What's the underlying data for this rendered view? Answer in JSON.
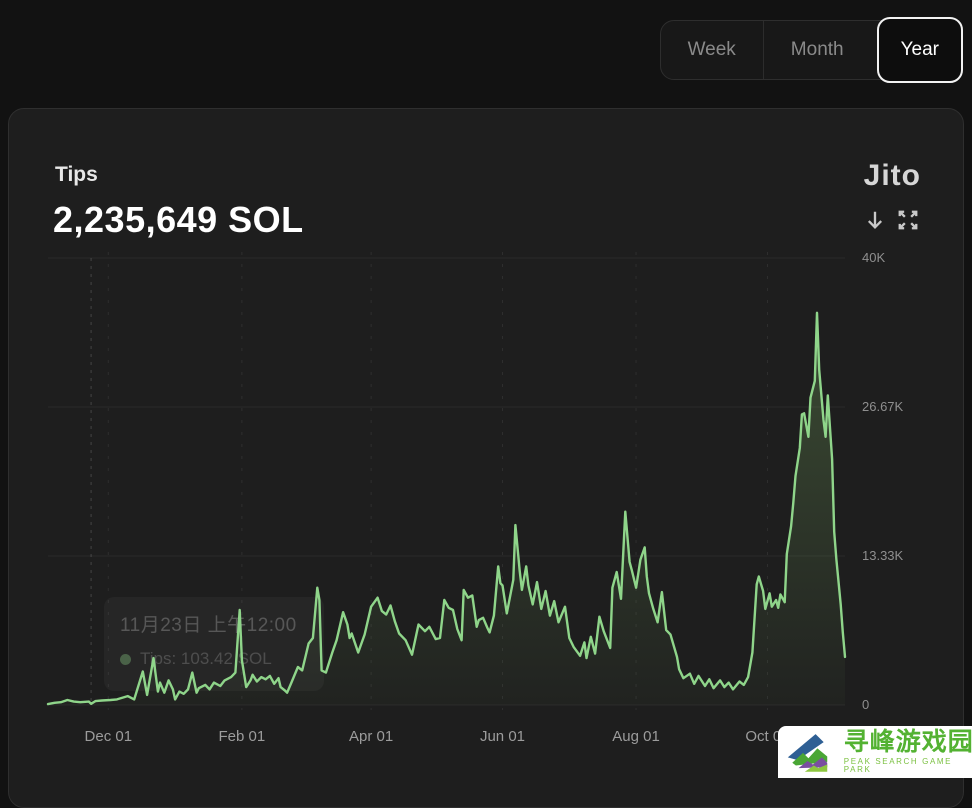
{
  "time_range": {
    "options": [
      {
        "label": "Week",
        "selected": false
      },
      {
        "label": "Month",
        "selected": false
      },
      {
        "label": "Year",
        "selected": true
      }
    ]
  },
  "card": {
    "title": "Tips",
    "total_value": "2,235,649 SOL",
    "logo_text": "Jito",
    "icons": {
      "download": "arrow-down-icon",
      "fullscreen": "expand-arrows-icon"
    }
  },
  "tooltip": {
    "date_line": "11月23日 上午12:00",
    "series_text": "Tips: 103.42 SOL"
  },
  "watermark": {
    "cn": "寻峰游戏园",
    "en": "PEAK SEARCH GAME PARK"
  },
  "chart_data": {
    "type": "line",
    "title": "Tips",
    "unit": "SOL",
    "legend": [
      "Tips"
    ],
    "grid": true,
    "x_axis": {
      "range_days": [
        0,
        370
      ],
      "ticks": [
        {
          "label": "Dec 01",
          "day": 28
        },
        {
          "label": "Feb 01",
          "day": 90
        },
        {
          "label": "Apr 01",
          "day": 150
        },
        {
          "label": "Jun 01",
          "day": 211
        },
        {
          "label": "Aug 01",
          "day": 273
        },
        {
          "label": "Oct 01",
          "day": 334
        }
      ]
    },
    "y_axis": {
      "range": [
        0,
        40000
      ],
      "ticks": [
        {
          "label": "40K",
          "value": 40000
        },
        {
          "label": "26.67K",
          "value": 26667
        },
        {
          "label": "13.33K",
          "value": 13333
        },
        {
          "label": "0",
          "value": 0
        }
      ]
    },
    "crosshair_day": 20,
    "series": [
      {
        "name": "Tips",
        "color": "#8fd58a",
        "points": [
          [
            0,
            80
          ],
          [
            3,
            200
          ],
          [
            6,
            250
          ],
          [
            9,
            450
          ],
          [
            12,
            300
          ],
          [
            15,
            250
          ],
          [
            19,
            300
          ],
          [
            20,
            103
          ],
          [
            22,
            350
          ],
          [
            25,
            400
          ],
          [
            29,
            450
          ],
          [
            32,
            500
          ],
          [
            37,
            800
          ],
          [
            40,
            500
          ],
          [
            44,
            3000
          ],
          [
            46,
            900
          ],
          [
            49,
            4200
          ],
          [
            51,
            1200
          ],
          [
            52,
            2000
          ],
          [
            54,
            1100
          ],
          [
            56,
            2200
          ],
          [
            58,
            1400
          ],
          [
            59,
            500
          ],
          [
            61,
            1200
          ],
          [
            63,
            1000
          ],
          [
            65,
            1400
          ],
          [
            67,
            2900
          ],
          [
            69,
            1100
          ],
          [
            70,
            1500
          ],
          [
            73,
            1800
          ],
          [
            75,
            1400
          ],
          [
            77,
            2000
          ],
          [
            80,
            1700
          ],
          [
            82,
            2200
          ],
          [
            85,
            2500
          ],
          [
            87,
            2900
          ],
          [
            89,
            8500
          ],
          [
            90,
            4000
          ],
          [
            92,
            1600
          ],
          [
            94,
            2200
          ],
          [
            95,
            2700
          ],
          [
            97,
            2100
          ],
          [
            99,
            2500
          ],
          [
            101,
            2300
          ],
          [
            103,
            2600
          ],
          [
            105,
            1900
          ],
          [
            107,
            2400
          ],
          [
            108,
            1600
          ],
          [
            110,
            1300
          ],
          [
            111,
            1100
          ],
          [
            113,
            2000
          ],
          [
            116,
            3400
          ],
          [
            118,
            3100
          ],
          [
            121,
            5500
          ],
          [
            123,
            6000
          ],
          [
            125,
            10500
          ],
          [
            126,
            9400
          ],
          [
            127,
            3100
          ],
          [
            129,
            2900
          ],
          [
            132,
            4700
          ],
          [
            134,
            5800
          ],
          [
            137,
            8300
          ],
          [
            139,
            7200
          ],
          [
            140,
            6000
          ],
          [
            141,
            6400
          ],
          [
            144,
            4700
          ],
          [
            147,
            6300
          ],
          [
            150,
            8800
          ],
          [
            153,
            9600
          ],
          [
            155,
            8400
          ],
          [
            157,
            8100
          ],
          [
            159,
            8900
          ],
          [
            161,
            7500
          ],
          [
            163,
            6400
          ],
          [
            166,
            5800
          ],
          [
            169,
            4500
          ],
          [
            172,
            7200
          ],
          [
            175,
            6600
          ],
          [
            177,
            7000
          ],
          [
            180,
            5900
          ],
          [
            182,
            6000
          ],
          [
            184,
            9400
          ],
          [
            186,
            8700
          ],
          [
            188,
            8500
          ],
          [
            190,
            6800
          ],
          [
            192,
            5800
          ],
          [
            193,
            10300
          ],
          [
            195,
            9600
          ],
          [
            197,
            9800
          ],
          [
            199,
            7000
          ],
          [
            200,
            7600
          ],
          [
            202,
            7800
          ],
          [
            204,
            6900
          ],
          [
            205,
            6500
          ],
          [
            207,
            8000
          ],
          [
            209,
            12400
          ],
          [
            210,
            10900
          ],
          [
            211,
            10700
          ],
          [
            213,
            8200
          ],
          [
            216,
            11200
          ],
          [
            217,
            16100
          ],
          [
            219,
            12000
          ],
          [
            220,
            10300
          ],
          [
            222,
            12400
          ],
          [
            223,
            10700
          ],
          [
            225,
            9000
          ],
          [
            227,
            11000
          ],
          [
            229,
            8600
          ],
          [
            231,
            10200
          ],
          [
            233,
            8000
          ],
          [
            235,
            9300
          ],
          [
            237,
            7400
          ],
          [
            240,
            8800
          ],
          [
            242,
            6000
          ],
          [
            244,
            5200
          ],
          [
            247,
            4400
          ],
          [
            249,
            5600
          ],
          [
            250,
            4200
          ],
          [
            252,
            6100
          ],
          [
            254,
            4600
          ],
          [
            256,
            7900
          ],
          [
            258,
            6600
          ],
          [
            261,
            5100
          ],
          [
            262,
            10500
          ],
          [
            264,
            11900
          ],
          [
            266,
            9500
          ],
          [
            268,
            17300
          ],
          [
            270,
            12800
          ],
          [
            271,
            12100
          ],
          [
            273,
            10500
          ],
          [
            275,
            13000
          ],
          [
            277,
            14100
          ],
          [
            278,
            11500
          ],
          [
            279,
            10000
          ],
          [
            281,
            8600
          ],
          [
            283,
            7400
          ],
          [
            285,
            10100
          ],
          [
            287,
            6700
          ],
          [
            289,
            6300
          ],
          [
            292,
            4300
          ],
          [
            293,
            3200
          ],
          [
            295,
            2400
          ],
          [
            298,
            2800
          ],
          [
            300,
            1900
          ],
          [
            302,
            2600
          ],
          [
            305,
            1700
          ],
          [
            307,
            2300
          ],
          [
            309,
            1500
          ],
          [
            312,
            2200
          ],
          [
            314,
            1600
          ],
          [
            316,
            2000
          ],
          [
            318,
            1400
          ],
          [
            321,
            2100
          ],
          [
            323,
            1800
          ],
          [
            325,
            2500
          ],
          [
            327,
            4700
          ],
          [
            329,
            10800
          ],
          [
            330,
            11500
          ],
          [
            332,
            10200
          ],
          [
            333,
            8600
          ],
          [
            335,
            10000
          ],
          [
            336,
            8800
          ],
          [
            338,
            9400
          ],
          [
            339,
            8700
          ],
          [
            340,
            9900
          ],
          [
            342,
            9200
          ],
          [
            343,
            13500
          ],
          [
            345,
            16000
          ],
          [
            346,
            18100
          ],
          [
            347,
            20500
          ],
          [
            349,
            23000
          ],
          [
            350,
            26000
          ],
          [
            351,
            26100
          ],
          [
            353,
            24000
          ],
          [
            354,
            27500
          ],
          [
            356,
            29000
          ],
          [
            357,
            35100
          ],
          [
            358,
            30000
          ],
          [
            360,
            25500
          ],
          [
            361,
            24000
          ],
          [
            362,
            27700
          ],
          [
            364,
            22000
          ],
          [
            365,
            15500
          ],
          [
            366,
            13000
          ],
          [
            368,
            9000
          ],
          [
            369,
            6500
          ],
          [
            370,
            4300
          ]
        ]
      }
    ]
  }
}
